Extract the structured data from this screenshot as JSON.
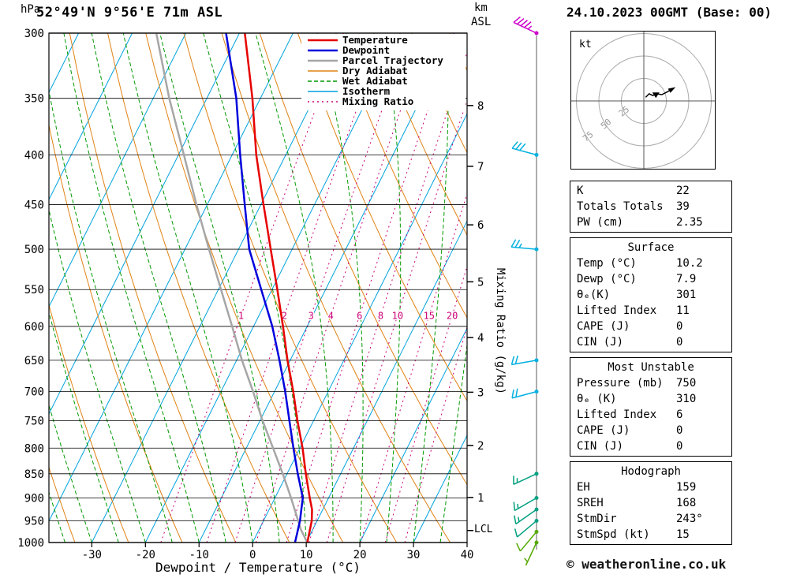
{
  "header": {
    "station": "52°49'N 9°56'E 71m ASL",
    "datetime": "24.10.2023 00GMT (Base: 00)"
  },
  "footer": {
    "copyright": "© weatheronline.co.uk"
  },
  "axes": {
    "pressure_unit": "hPa",
    "altitude_unit_line1": "km",
    "altitude_unit_line2": "ASL",
    "right_label": "Mixing Ratio (g/kg)",
    "bottom_label": "Dewpoint / Temperature (°C)",
    "lcl_label": "LCL"
  },
  "chart_data": {
    "type": "line",
    "subtype": "skew-t-log-p-sounding",
    "pressure_range_hpa": [
      300,
      1000
    ],
    "temp_axis_c": {
      "ticks": [
        -30,
        -20,
        -10,
        0,
        10,
        20,
        30,
        40
      ],
      "xlim": [
        -38,
        40
      ]
    },
    "skew": 0.5,
    "pressure_ticks_hpa": [
      300,
      350,
      400,
      450,
      500,
      550,
      600,
      650,
      700,
      750,
      800,
      850,
      900,
      950,
      1000
    ],
    "km_ticks": [
      {
        "km": 8,
        "p": 356
      },
      {
        "km": 7,
        "p": 411
      },
      {
        "km": 6,
        "p": 472
      },
      {
        "km": 5,
        "p": 540
      },
      {
        "km": 4,
        "p": 616
      },
      {
        "km": 3,
        "p": 701
      },
      {
        "km": 2,
        "p": 795
      },
      {
        "km": 1,
        "p": 899
      }
    ],
    "lcl_pressure_hpa": 972,
    "isotherms_c": {
      "min": -120,
      "max": 40,
      "step": 10
    },
    "dry_adiabats_k": {
      "min": 240,
      "max": 440,
      "step": 10
    },
    "wet_adiabats_c": {
      "min": -55,
      "max": 40,
      "step": 5
    },
    "mixing_ratio_gkg": [
      1,
      2,
      3,
      4,
      6,
      8,
      10,
      15,
      20,
      25
    ],
    "mixing_ratio_label_p": 585,
    "temperature_profile": [
      [
        1000,
        10.2
      ],
      [
        950,
        9.0
      ],
      [
        925,
        8.0
      ],
      [
        900,
        6.5
      ],
      [
        850,
        3.5
      ],
      [
        800,
        0.5
      ],
      [
        750,
        -3
      ],
      [
        700,
        -6.5
      ],
      [
        650,
        -10.5
      ],
      [
        600,
        -14.5
      ],
      [
        550,
        -19
      ],
      [
        500,
        -24
      ],
      [
        450,
        -29.5
      ],
      [
        400,
        -35.5
      ],
      [
        350,
        -41.5
      ],
      [
        300,
        -49
      ]
    ],
    "dewpoint_profile": [
      [
        1000,
        7.9
      ],
      [
        950,
        6.8
      ],
      [
        925,
        6.0
      ],
      [
        900,
        5.2
      ],
      [
        850,
        2.0
      ],
      [
        800,
        -1.2
      ],
      [
        750,
        -4.5
      ],
      [
        700,
        -8
      ],
      [
        650,
        -12
      ],
      [
        600,
        -16.5
      ],
      [
        550,
        -22
      ],
      [
        500,
        -28
      ],
      [
        450,
        -33
      ],
      [
        400,
        -38.5
      ],
      [
        350,
        -44.5
      ],
      [
        300,
        -52.5
      ]
    ],
    "parcel_profile": [
      [
        1000,
        10.2
      ],
      [
        970,
        7.8
      ],
      [
        900,
        3.0
      ],
      [
        850,
        -0.8
      ],
      [
        800,
        -5
      ],
      [
        750,
        -9.5
      ],
      [
        700,
        -14
      ],
      [
        650,
        -19
      ],
      [
        600,
        -24
      ],
      [
        550,
        -29.5
      ],
      [
        500,
        -35.5
      ],
      [
        450,
        -42
      ],
      [
        400,
        -49
      ],
      [
        350,
        -57
      ],
      [
        300,
        -65.5
      ]
    ],
    "legend": [
      {
        "label": "Temperature",
        "color": "#e60000",
        "width": 2.5,
        "dash": ""
      },
      {
        "label": "Dewpoint",
        "color": "#0000dd",
        "width": 2.5,
        "dash": ""
      },
      {
        "label": "Parcel Trajectory",
        "color": "#a6a6a6",
        "width": 2.5,
        "dash": ""
      },
      {
        "label": "Dry Adiabat",
        "color": "#e08214",
        "width": 1.2,
        "dash": ""
      },
      {
        "label": "Wet Adiabat",
        "color": "#009900",
        "width": 1.2,
        "dash": "5 3"
      },
      {
        "label": "Isotherm",
        "color": "#00a2dd",
        "width": 1.2,
        "dash": ""
      },
      {
        "label": "Mixing Ratio",
        "color": "#cc0077",
        "width": 1.2,
        "dash": "2 4"
      }
    ],
    "wind_barbs": [
      {
        "p": 300,
        "dir": 295,
        "spd": 45,
        "color": "#cc00cc"
      },
      {
        "p": 400,
        "dir": 285,
        "spd": 30,
        "color": "#00b0e0"
      },
      {
        "p": 500,
        "dir": 275,
        "spd": 25,
        "color": "#00b0e0"
      },
      {
        "p": 650,
        "dir": 260,
        "spd": 20,
        "color": "#00b0e0"
      },
      {
        "p": 700,
        "dir": 255,
        "spd": 20,
        "color": "#00b0e0"
      },
      {
        "p": 850,
        "dir": 245,
        "spd": 15,
        "color": "#00a080"
      },
      {
        "p": 900,
        "dir": 240,
        "spd": 15,
        "color": "#00a080"
      },
      {
        "p": 925,
        "dir": 235,
        "spd": 15,
        "color": "#00a080"
      },
      {
        "p": 950,
        "dir": 230,
        "spd": 10,
        "color": "#00a080"
      },
      {
        "p": 975,
        "dir": 220,
        "spd": 10,
        "color": "#55aa00"
      },
      {
        "p": 1000,
        "dir": 205,
        "spd": 5,
        "color": "#55aa00"
      }
    ]
  },
  "hodograph": {
    "unit_label": "kt",
    "rings_kt": [
      25,
      50,
      75
    ],
    "trace_uv_kt": [
      [
        2,
        4
      ],
      [
        6,
        8
      ],
      [
        10,
        6
      ],
      [
        14,
        8
      ],
      [
        20,
        7
      ],
      [
        26,
        10
      ],
      [
        33,
        14
      ]
    ],
    "storm_motion_uv_kt": [
      13.4,
      6.8
    ]
  },
  "tables": [
    {
      "title": "",
      "rows": [
        [
          "K",
          "22"
        ],
        [
          "Totals Totals",
          "39"
        ],
        [
          "PW (cm)",
          "2.35"
        ]
      ]
    },
    {
      "title": "Surface",
      "rows": [
        [
          "Temp (°C)",
          "10.2"
        ],
        [
          "Dewp (°C)",
          "7.9"
        ],
        [
          "θₑ(K)",
          "301"
        ],
        [
          "Lifted Index",
          "11"
        ],
        [
          "CAPE (J)",
          "0"
        ],
        [
          "CIN (J)",
          "0"
        ]
      ]
    },
    {
      "title": "Most Unstable",
      "rows": [
        [
          "Pressure (mb)",
          "750"
        ],
        [
          "θₑ (K)",
          "310"
        ],
        [
          "Lifted Index",
          "6"
        ],
        [
          "CAPE (J)",
          "0"
        ],
        [
          "CIN (J)",
          "0"
        ]
      ]
    },
    {
      "title": "Hodograph",
      "rows": [
        [
          "EH",
          "159"
        ],
        [
          "SREH",
          "168"
        ],
        [
          "StmDir",
          "243°"
        ],
        [
          "StmSpd (kt)",
          "15"
        ]
      ]
    }
  ]
}
